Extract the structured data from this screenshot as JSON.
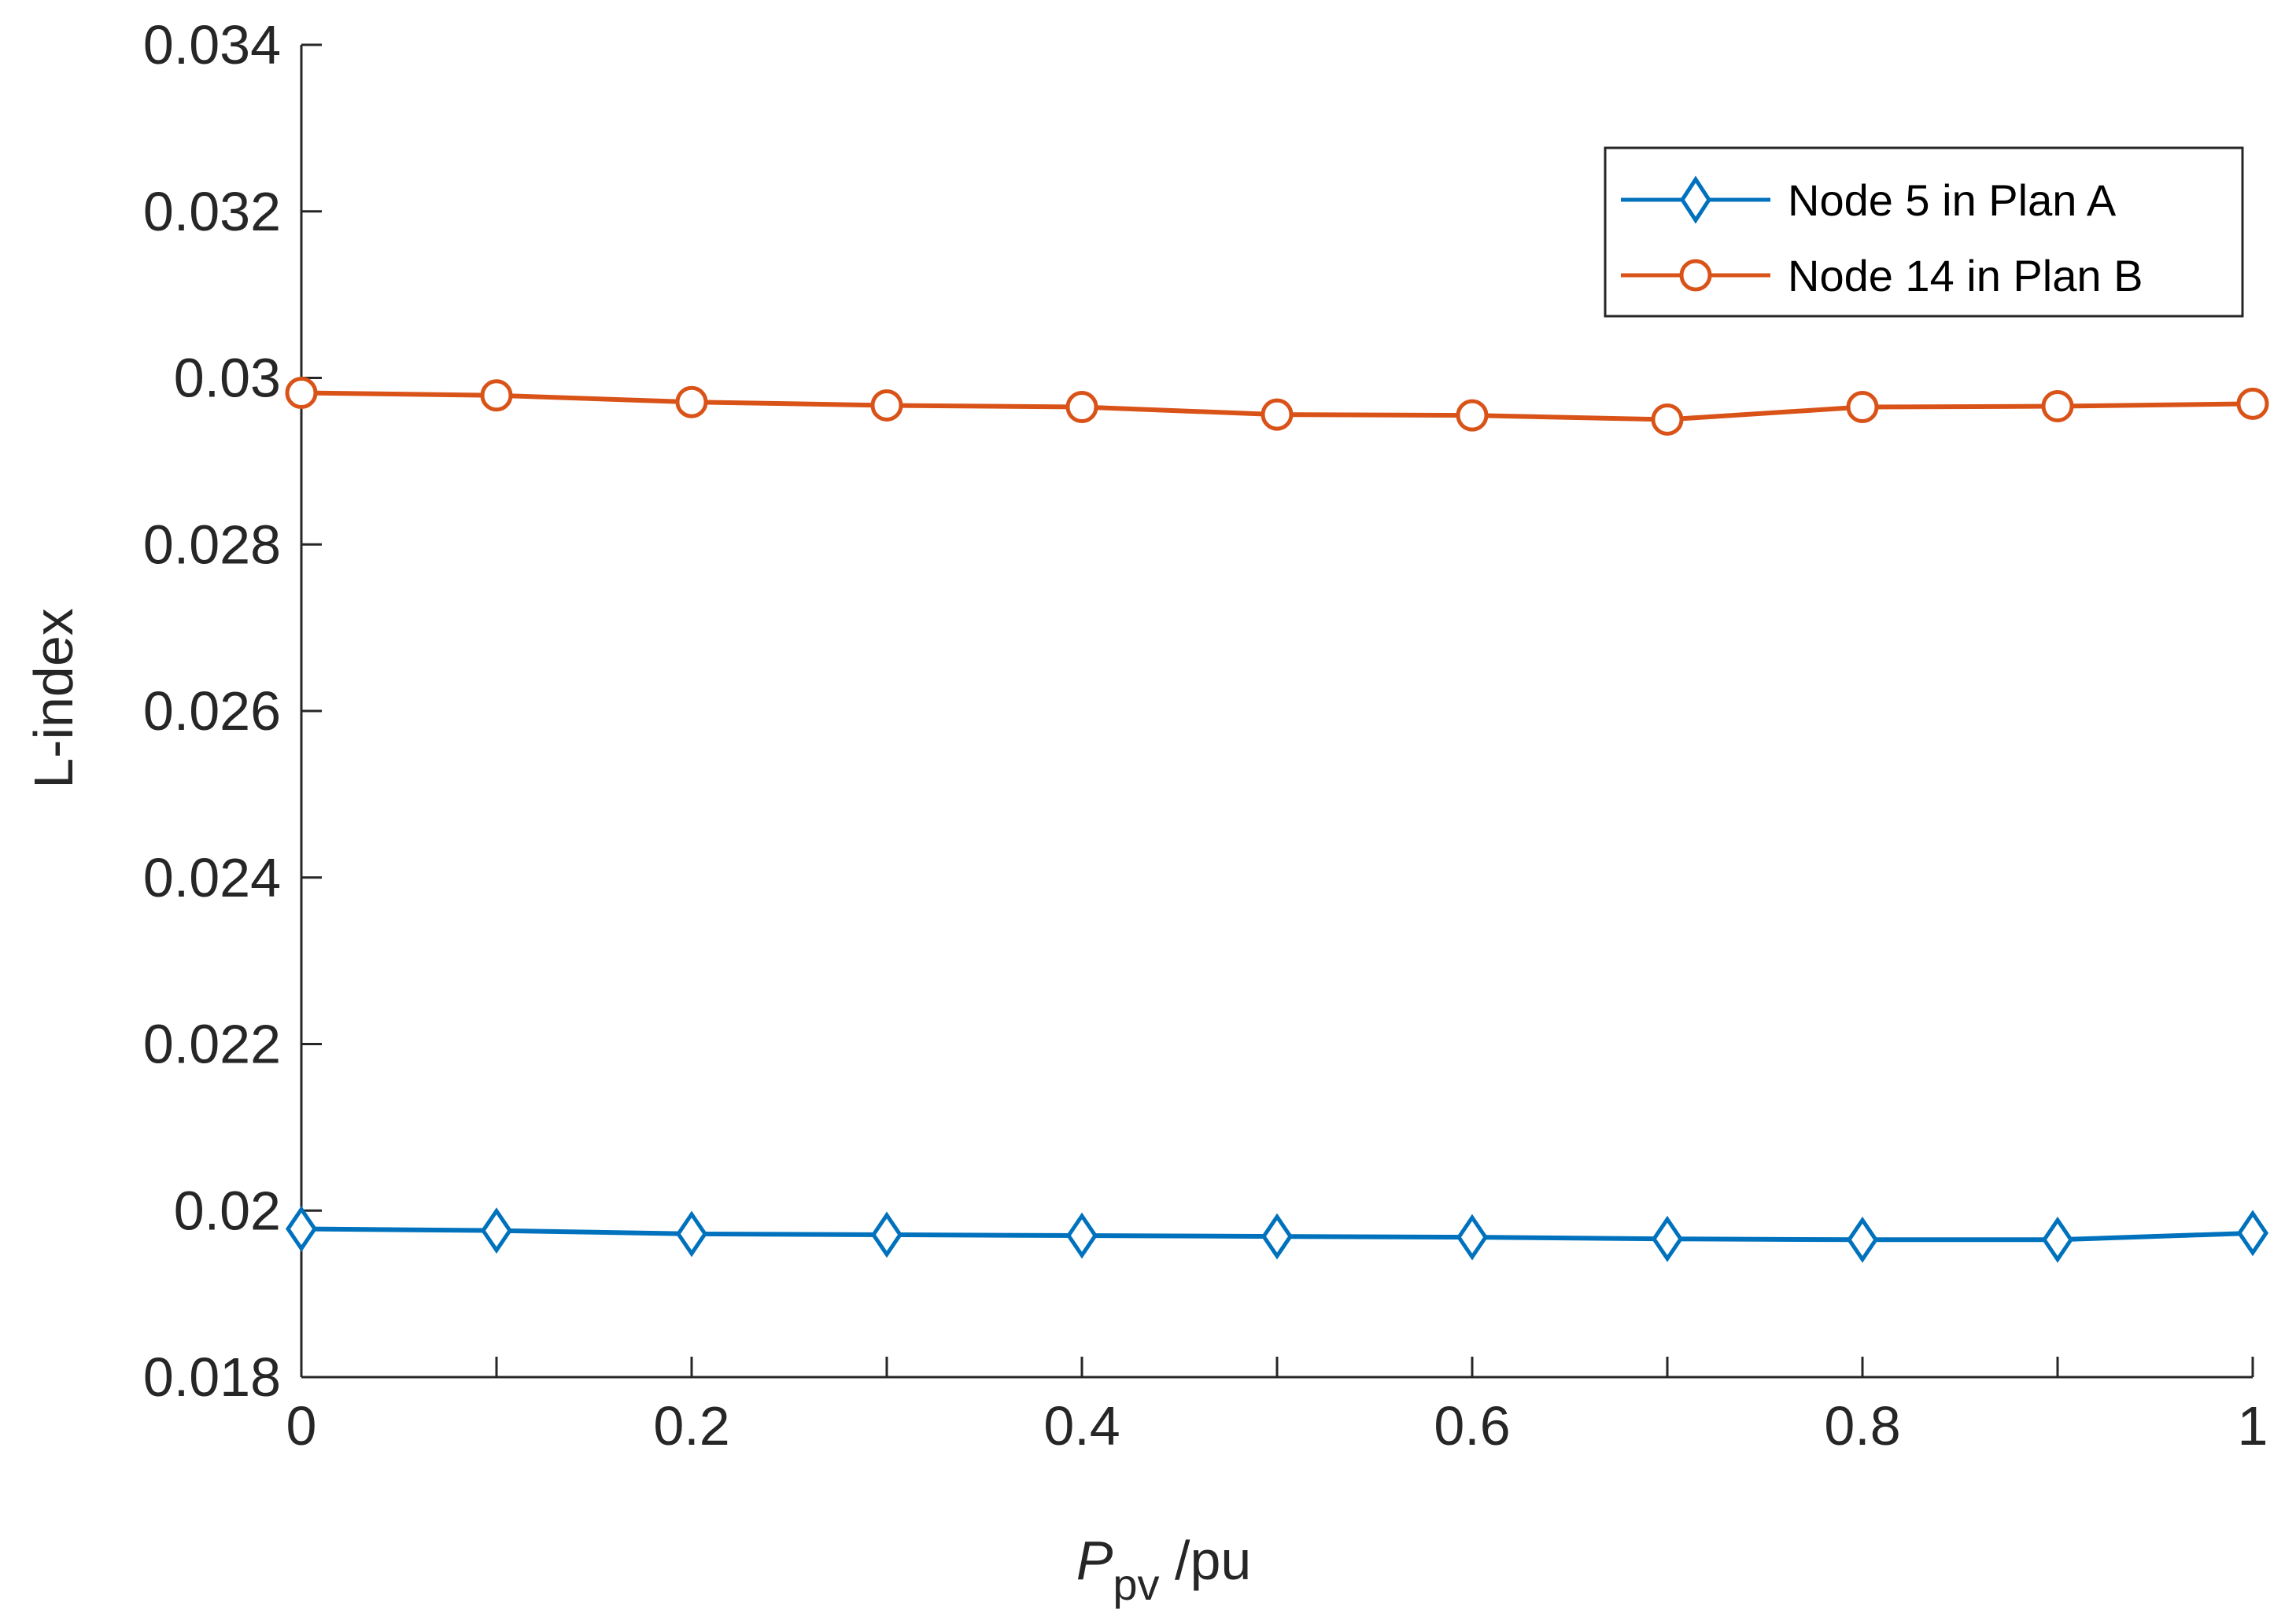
{
  "chart_data": {
    "type": "line",
    "title": "",
    "xlabel": {
      "main": "P",
      "subscript": "pv",
      "suffix": " /pu"
    },
    "ylabel": "L-index",
    "xlim": [
      0,
      1
    ],
    "ylim": [
      0.018,
      0.034
    ],
    "xticks": [
      0,
      0.1,
      0.2,
      0.3,
      0.4,
      0.5,
      0.6,
      0.7,
      0.8,
      0.9,
      1
    ],
    "xtick_labels": [
      "0",
      "0.2",
      "0.4",
      "0.6",
      "0.8",
      "1"
    ],
    "xtick_label_values": [
      0,
      0.2,
      0.4,
      0.6,
      0.8,
      1
    ],
    "yticks": [
      0.018,
      0.02,
      0.022,
      0.024,
      0.026,
      0.028,
      0.03,
      0.032,
      0.034
    ],
    "ytick_labels": [
      "0.018",
      "0.02",
      "0.022",
      "0.024",
      "0.026",
      "0.028",
      "0.03",
      "0.032",
      "0.034"
    ],
    "grid": false,
    "legend_position": "top-right",
    "x": [
      0,
      0.1,
      0.2,
      0.3,
      0.4,
      0.5,
      0.6,
      0.7,
      0.8,
      0.9,
      1
    ],
    "series": [
      {
        "name": "Node 5 in Plan A",
        "color": "#0072BD",
        "marker": "diamond",
        "values": [
          0.01978,
          0.01976,
          0.01972,
          0.01971,
          0.0197,
          0.01969,
          0.01968,
          0.01966,
          0.01965,
          0.01965,
          0.01973
        ]
      },
      {
        "name": "Node 14 in Plan B",
        "color": "#D95319",
        "marker": "circle",
        "values": [
          0.02982,
          0.02979,
          0.02971,
          0.02967,
          0.02965,
          0.02956,
          0.02955,
          0.0295,
          0.02965,
          0.02966,
          0.02969
        ]
      }
    ]
  }
}
